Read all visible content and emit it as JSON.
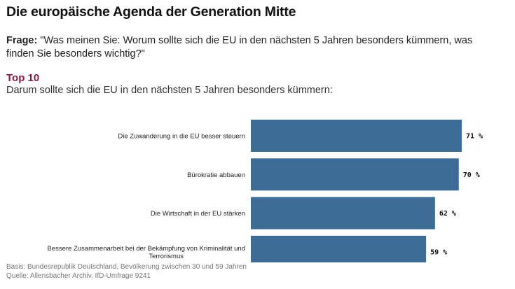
{
  "title": "Die europäische Agenda der Generation Mitte",
  "question": {
    "label": "Frage:",
    "text": " \"Was meinen Sie: Worum sollte sich die EU in den nächsten 5 Jahren besonders kümmern, was finden Sie besonders wichtig?\""
  },
  "subhead": "Top 10",
  "subtitle": "Darum sollte sich die EU in den nächsten 5 Jahren besonders kümmern:",
  "colors": {
    "bar": "#3d6d96",
    "subhead": "#8b1a3c"
  },
  "chart_data": {
    "type": "bar",
    "orientation": "horizontal",
    "categories": [
      "Die Zuwanderung in die EU besser steuern",
      "Bürokratie abbauen",
      "Die Wirtschaft in der EU stärken",
      "Bessere Zusammenarbeit bei der Bekämpfung von Kriminalität und Terrorismus"
    ],
    "category_lines": [
      [
        "Die Zuwanderung in die EU besser steuern"
      ],
      [
        "Bürokratie abbauen"
      ],
      [
        "Die Wirtschaft in der EU stärken"
      ],
      [
        "Bessere Zusammenarbeit bei der Bekämpfung von Kriminalität und",
        "Terrorismus"
      ]
    ],
    "values": [
      71,
      70,
      62,
      59
    ],
    "value_labels": [
      "71 %",
      "70 %",
      "62 %",
      "59 %"
    ],
    "unit": "%",
    "xlim": [
      0,
      100
    ]
  },
  "footer": {
    "basis": "Basis: Bundesrepublik Deutschland, Bevölkerung zwischen 30 und 59 Jahren",
    "source": "Quelle: Allensbacher Archiv, IfD-Umfrage 9241"
  }
}
